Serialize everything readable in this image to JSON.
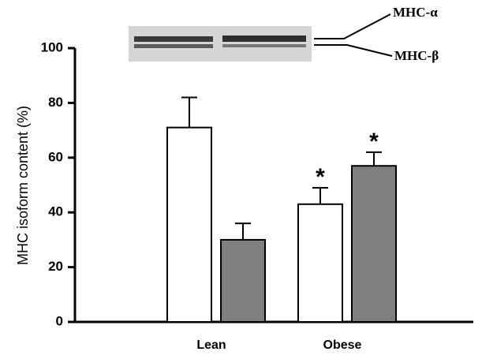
{
  "chart_data": {
    "type": "bar",
    "ylabel": "MHC isoform content (%)",
    "categories": [
      "Lean",
      "Obese"
    ],
    "series": [
      {
        "color": "#ffffff",
        "values": [
          71,
          43
        ],
        "errors": [
          11,
          6
        ],
        "markers": [
          null,
          "*"
        ]
      },
      {
        "color": "#7f7f7f",
        "values": [
          30,
          57
        ],
        "errors": [
          6,
          5
        ],
        "markers": [
          null,
          "*"
        ]
      }
    ],
    "ylim": [
      0,
      100
    ],
    "yticks": [
      0,
      20,
      40,
      60,
      80,
      100
    ],
    "gel_labels": [
      "MHC-α",
      "MHC-β"
    ]
  }
}
